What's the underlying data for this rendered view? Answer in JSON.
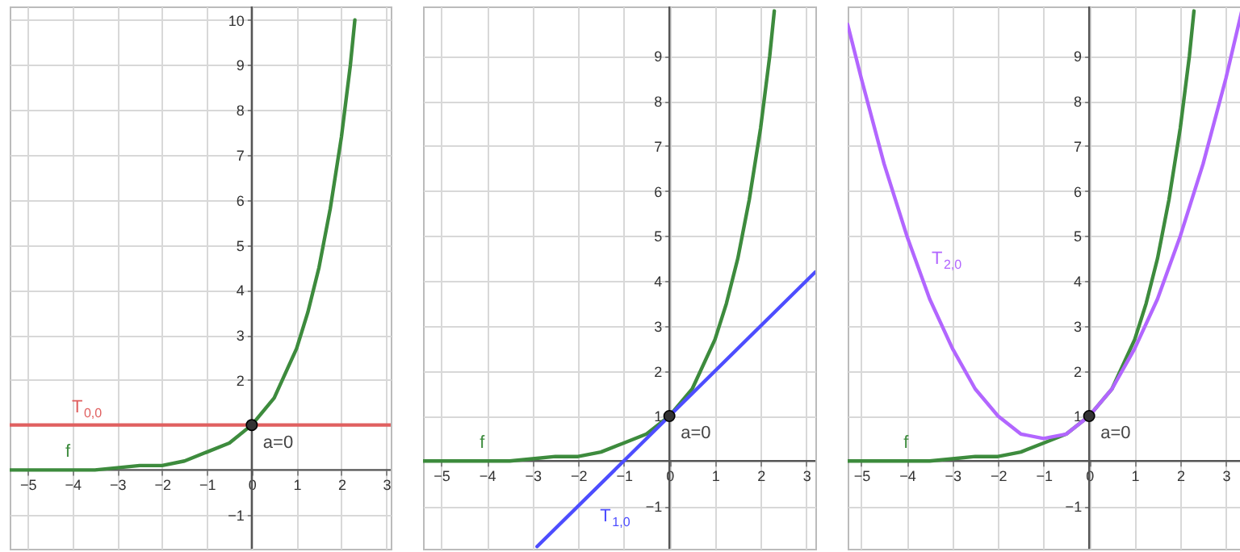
{
  "chart_data": [
    {
      "type": "line",
      "xlim": [
        -5.4,
        3.1
      ],
      "ylim": [
        -1.75,
        10.3
      ],
      "xticks": [
        -5,
        -4,
        -3,
        -2,
        -1,
        0,
        1,
        2,
        3
      ],
      "yticks": [
        -1,
        2,
        3,
        4,
        5,
        6,
        7,
        8,
        9,
        10
      ],
      "grid": true,
      "series": [
        {
          "name": "f",
          "color": "#3d8b3d",
          "x": [
            -5.4,
            -5,
            -4.5,
            -4,
            -3.5,
            -3,
            -2.5,
            -2,
            -1.5,
            -1,
            -0.5,
            0,
            0.5,
            1,
            1.25,
            1.5,
            1.75,
            2,
            2.2,
            2.3
          ],
          "values": [
            0,
            0,
            0,
            0,
            0,
            0.05,
            0.1,
            0.1,
            0.2,
            0.4,
            0.6,
            1,
            1.6,
            2.7,
            3.5,
            4.5,
            5.8,
            7.4,
            9,
            10
          ]
        },
        {
          "name": "T$_{0,0}$",
          "color": "#e06060",
          "x": [
            -5.4,
            3.1
          ],
          "values": [
            1,
            1
          ]
        },
        {
          "type": "scatter",
          "color": "#333333",
          "x": [
            0
          ],
          "values": [
            1
          ]
        }
      ],
      "annotations": [
        "a=0"
      ]
    },
    {
      "type": "line",
      "xlim": [
        -5.4,
        3.2
      ],
      "ylim": [
        -1.95,
        10.1
      ],
      "xticks": [
        -5,
        -4,
        -3,
        -2,
        -1,
        0,
        1,
        2,
        3
      ],
      "yticks": [
        -1,
        1,
        2,
        3,
        4,
        5,
        6,
        7,
        8,
        9
      ],
      "grid": true,
      "series": [
        {
          "name": "f",
          "color": "#3d8b3d",
          "x": [
            -5.4,
            -5,
            -4.5,
            -4,
            -3.5,
            -3,
            -2.5,
            -2,
            -1.5,
            -1,
            -0.5,
            0,
            0.5,
            1,
            1.25,
            1.5,
            1.75,
            2,
            2.2,
            2.3
          ],
          "values": [
            0,
            0,
            0,
            0,
            0,
            0.05,
            0.1,
            0.1,
            0.2,
            0.4,
            0.6,
            1,
            1.6,
            2.7,
            3.5,
            4.5,
            5.8,
            7.4,
            9,
            10
          ]
        },
        {
          "name": "T$_{1,0}$",
          "color": "#4d4dff",
          "x": [
            -2.9,
            3.2
          ],
          "values": [
            -1.9,
            4.2
          ]
        },
        {
          "type": "scatter",
          "color": "#333333",
          "x": [
            0
          ],
          "values": [
            1
          ]
        }
      ],
      "annotations": [
        "a=0"
      ]
    },
    {
      "type": "line",
      "xlim": [
        -5.3,
        3.7
      ],
      "ylim": [
        -1.95,
        10.1
      ],
      "xticks": [
        -5,
        -4,
        -3,
        -2,
        -1,
        0,
        1,
        2,
        3
      ],
      "yticks": [
        -1,
        1,
        2,
        3,
        4,
        5,
        6,
        7,
        8,
        9
      ],
      "grid": true,
      "series": [
        {
          "name": "f",
          "color": "#3d8b3d",
          "x": [
            -5.3,
            -5,
            -4.5,
            -4,
            -3.5,
            -3,
            -2.5,
            -2,
            -1.5,
            -1,
            -0.5,
            0,
            0.5,
            1,
            1.25,
            1.5,
            1.75,
            2,
            2.2,
            2.3
          ],
          "values": [
            0,
            0,
            0,
            0,
            0,
            0.05,
            0.1,
            0.1,
            0.2,
            0.4,
            0.6,
            1,
            1.6,
            2.7,
            3.5,
            4.5,
            5.8,
            7.4,
            9,
            10
          ]
        },
        {
          "name": "T$_{2,0}$",
          "color": "#b266ff",
          "x": [
            -5.3,
            -5,
            -4.5,
            -4,
            -3.5,
            -3,
            -2.5,
            -2,
            -1.5,
            -1,
            -0.5,
            0,
            0.5,
            1,
            1.5,
            2,
            2.5,
            3,
            3.35
          ],
          "values": [
            9.7,
            8.5,
            6.6,
            5,
            3.6,
            2.5,
            1.6,
            1,
            0.6,
            0.5,
            0.6,
            1,
            1.6,
            2.5,
            3.6,
            5,
            6.6,
            8.5,
            10
          ]
        },
        {
          "type": "scatter",
          "color": "#333333",
          "x": [
            0
          ],
          "values": [
            1
          ]
        }
      ],
      "annotations": [
        "a=0"
      ]
    }
  ]
}
